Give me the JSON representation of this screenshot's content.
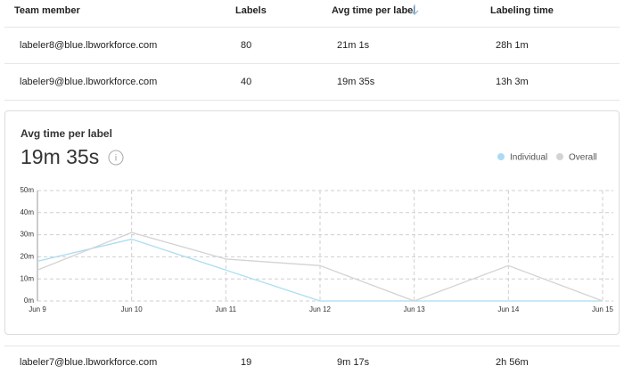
{
  "table": {
    "header": [
      "Team member",
      "Labels",
      "Avg time per label",
      "Labeling time"
    ],
    "rows": [
      [
        "labeler8@blue.lbworkforce.com",
        80,
        "21m 1s",
        "28h 1m"
      ],
      [
        "labeler9@blue.lbworkforce.com",
        40,
        "19m 35s",
        "13h 3m"
      ],
      [
        "labeler7@blue.lbworkforce.com",
        19,
        "9m 17s",
        "2h 56m"
      ]
    ]
  },
  "chart_data": {
    "type": "line",
    "title": "Avg time per label",
    "subtitle": "19m 35s",
    "categories": [
      "Jun 9",
      "Jun 10",
      "Jun 11",
      "Jun 12",
      "Jun 13",
      "Jun 14",
      "Jun 15"
    ],
    "series": [
      {
        "name": "Individual",
        "color": "#a9dcf3",
        "values": [
          18,
          28,
          14,
          0,
          0,
          0,
          0
        ]
      },
      {
        "name": "Overall",
        "color": "#d3d3d6",
        "values": [
          14,
          31,
          19,
          16,
          0,
          16,
          0
        ]
      }
    ],
    "ylim": [
      0,
      50
    ],
    "yticks": [
      {
        "value": 0,
        "label": "0m"
      },
      {
        "value": 10,
        "label": "10m"
      },
      {
        "value": 20,
        "label": "20m"
      },
      {
        "value": 30,
        "label": "30m"
      },
      {
        "value": 40,
        "label": "40m"
      },
      {
        "value": 50,
        "label": "50m"
      }
    ],
    "grid": true
  }
}
